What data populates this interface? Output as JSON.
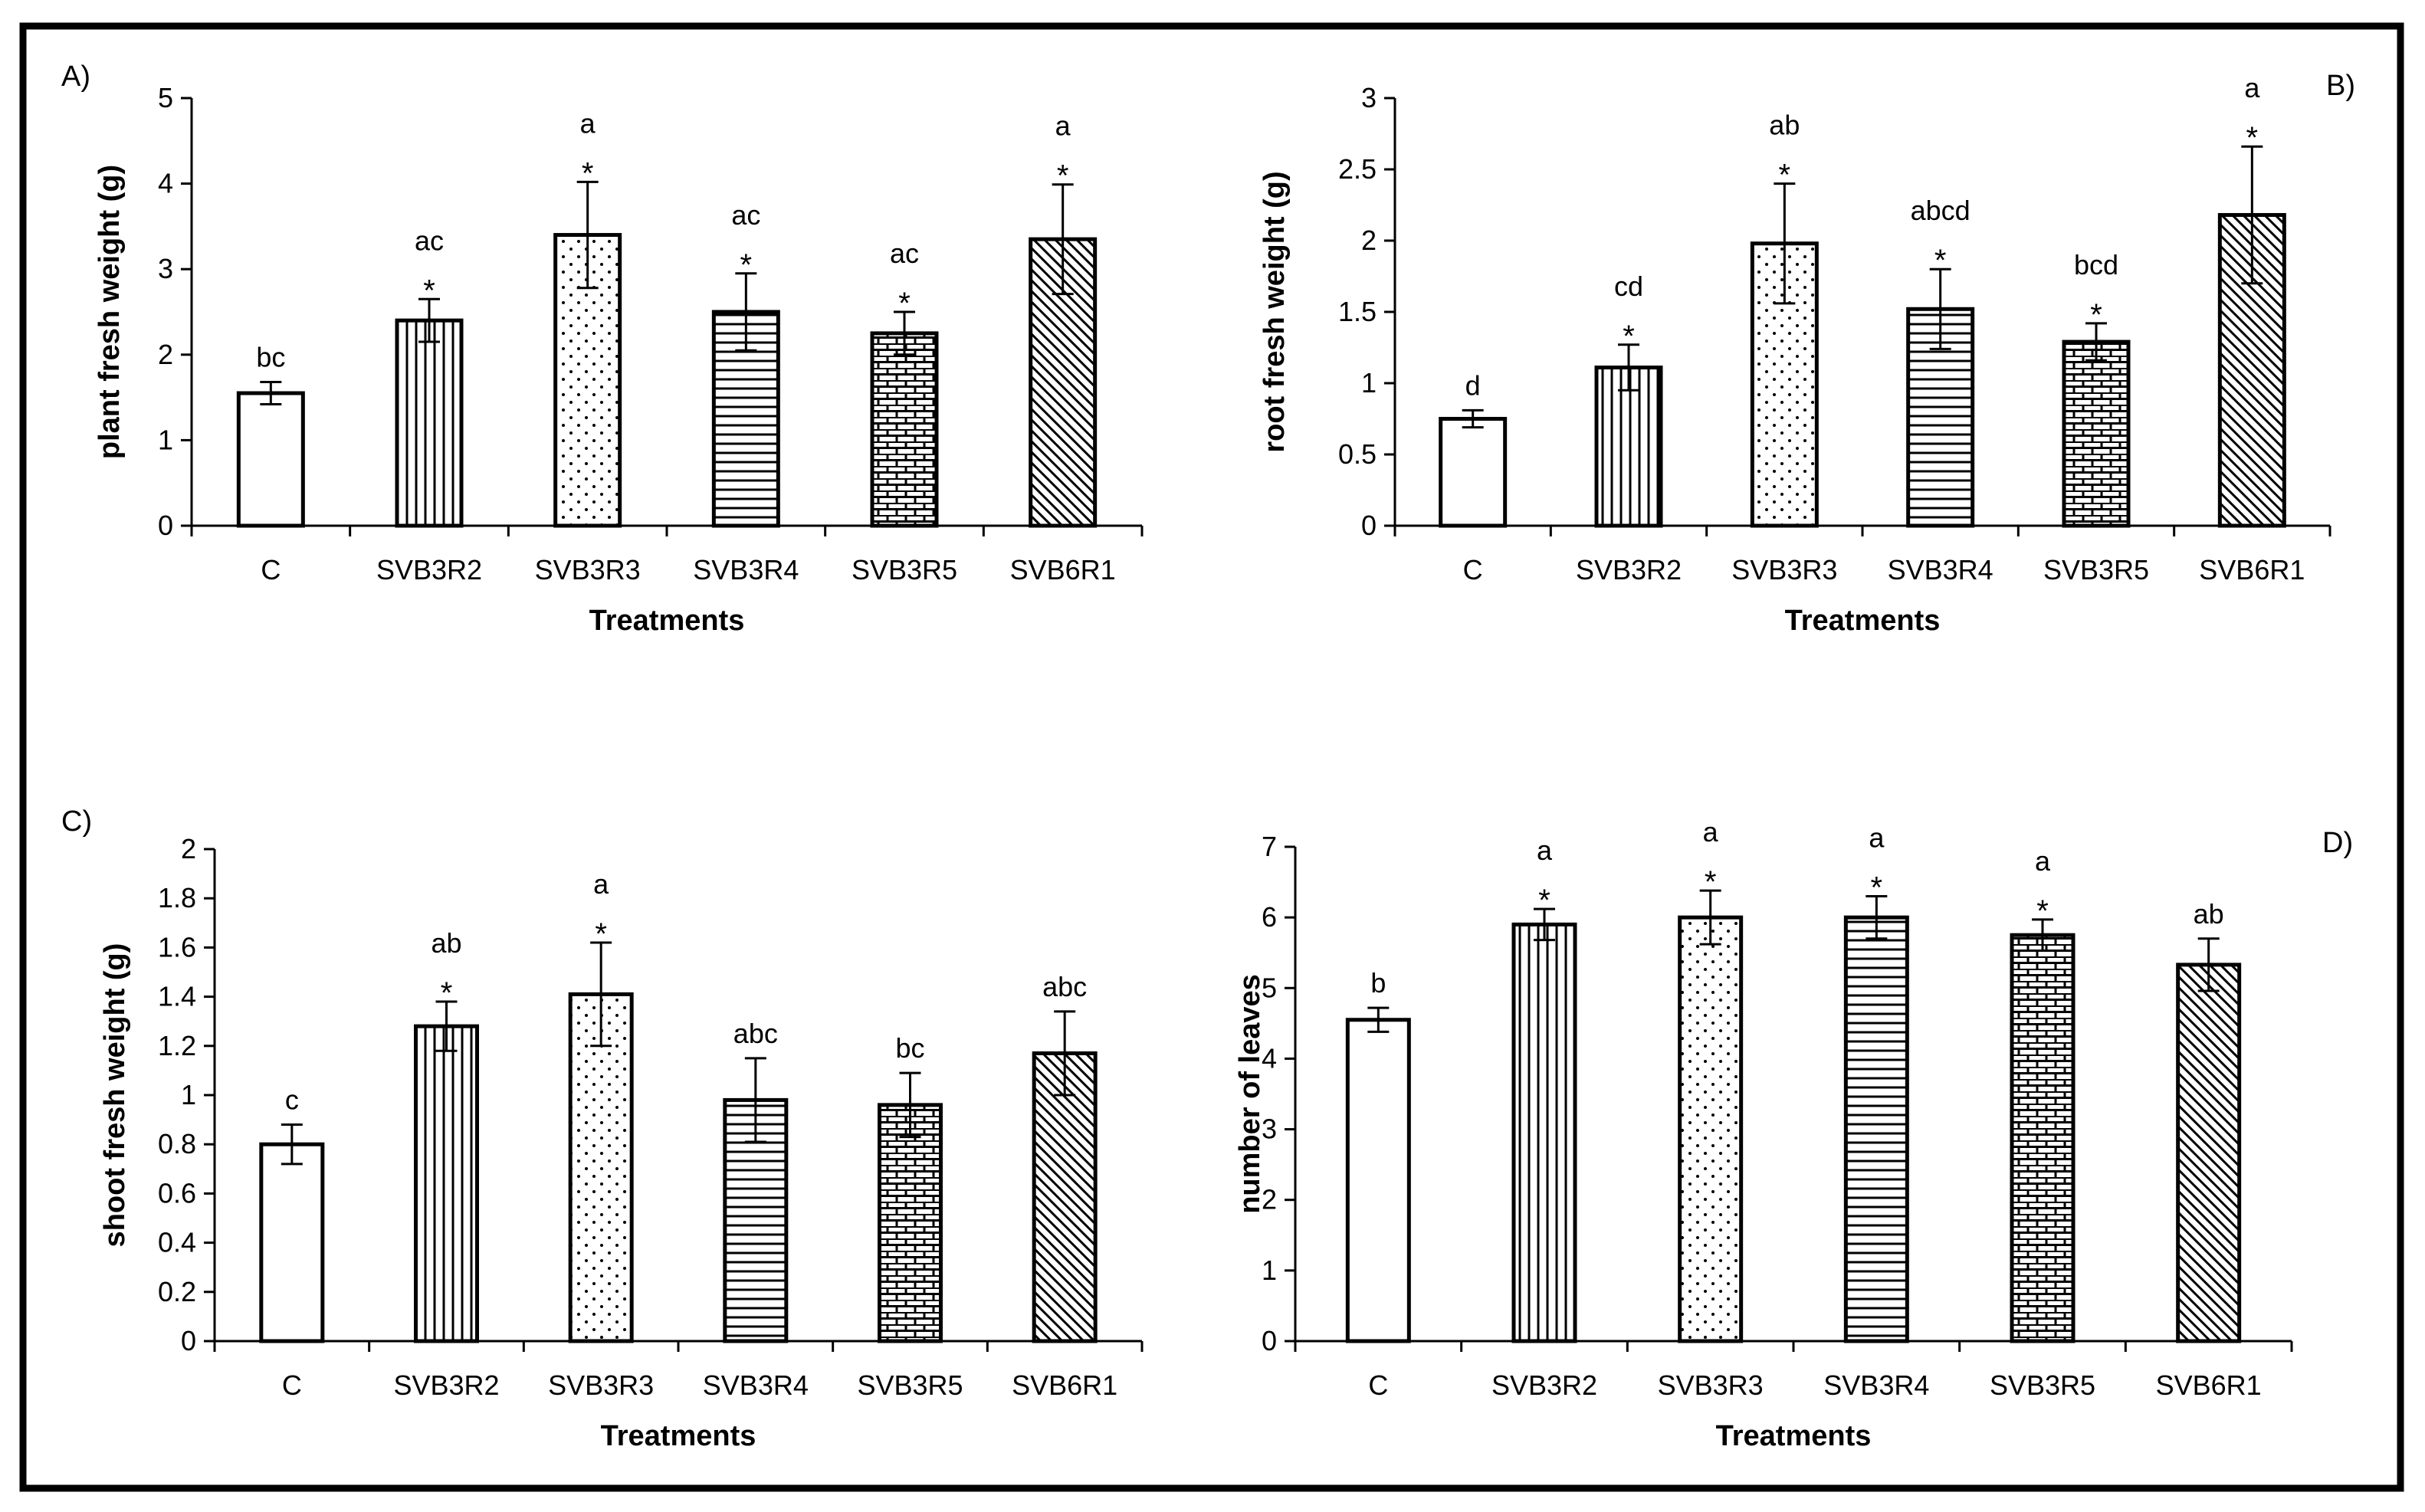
{
  "figure": {
    "panels": [
      {
        "id": "A",
        "label": "A)"
      },
      {
        "id": "B",
        "label": "B)"
      },
      {
        "id": "C",
        "label": "C)"
      },
      {
        "id": "D",
        "label": "D)"
      }
    ]
  },
  "chart_data": [
    {
      "panel": "A)",
      "type": "bar",
      "xlabel": "Treatments",
      "ylabel": "plant fresh weight (g)",
      "ylim": [
        0,
        5
      ],
      "yticks": [
        0,
        1,
        2,
        3,
        4,
        5
      ],
      "ytick_labels": [
        "0",
        "1",
        "2",
        "3",
        "4",
        "5"
      ],
      "categories": [
        "C",
        "SVB3R2",
        "SVB3R3",
        "SVB3R4",
        "SVB3R5",
        "SVB6R1"
      ],
      "values": [
        1.55,
        2.4,
        3.4,
        2.5,
        2.25,
        3.35
      ],
      "errors": [
        0.13,
        0.25,
        0.62,
        0.45,
        0.25,
        0.64
      ],
      "letters": [
        "bc",
        "ac",
        "a",
        "ac",
        "ac",
        "a"
      ],
      "stars": [
        false,
        true,
        true,
        true,
        true,
        true
      ],
      "patterns": [
        "none",
        "vertical",
        "dots",
        "horizontal",
        "brick",
        "diagonal"
      ]
    },
    {
      "panel": "B)",
      "type": "bar",
      "xlabel": "Treatments",
      "ylabel": "root fresh weight (g)",
      "ylim": [
        0,
        3
      ],
      "yticks": [
        0,
        0.5,
        1,
        1.5,
        2,
        2.5,
        3
      ],
      "ytick_labels": [
        "0",
        "0.5",
        "1",
        "1.5",
        "2",
        "2.5",
        "3"
      ],
      "categories": [
        "C",
        "SVB3R2",
        "SVB3R3",
        "SVB3R4",
        "SVB3R5",
        "SVB6R1"
      ],
      "values": [
        0.75,
        1.11,
        1.98,
        1.52,
        1.29,
        2.18
      ],
      "errors": [
        0.06,
        0.16,
        0.42,
        0.28,
        0.13,
        0.48
      ],
      "letters": [
        "d",
        "cd",
        "ab",
        "abcd",
        "bcd",
        "a"
      ],
      "stars": [
        false,
        true,
        true,
        true,
        true,
        true
      ],
      "patterns": [
        "none",
        "vertical",
        "dots",
        "horizontal",
        "brick",
        "diagonal"
      ]
    },
    {
      "panel": "C)",
      "type": "bar",
      "xlabel": "Treatments",
      "ylabel": "shoot fresh weight (g)",
      "ylim": [
        0,
        2
      ],
      "yticks": [
        0,
        0.2,
        0.4,
        0.6,
        0.8,
        1,
        1.2,
        1.4,
        1.6,
        1.8,
        2
      ],
      "ytick_labels": [
        "0",
        "0.2",
        "0.4",
        "0.6",
        "0.8",
        "1",
        "1.2",
        "1.4",
        "1.6",
        "1.8",
        "2"
      ],
      "categories": [
        "C",
        "SVB3R2",
        "SVB3R3",
        "SVB3R4",
        "SVB3R5",
        "SVB6R1"
      ],
      "values": [
        0.8,
        1.28,
        1.41,
        0.98,
        0.96,
        1.17
      ],
      "errors": [
        0.08,
        0.1,
        0.21,
        0.17,
        0.13,
        0.17
      ],
      "letters": [
        "c",
        "ab",
        "a",
        "abc",
        "bc",
        "abc"
      ],
      "stars": [
        false,
        true,
        true,
        false,
        false,
        false
      ],
      "patterns": [
        "none",
        "vertical",
        "dots",
        "horizontal",
        "brick",
        "diagonal"
      ]
    },
    {
      "panel": "D)",
      "type": "bar",
      "xlabel": "Treatments",
      "ylabel": "number of leaves",
      "ylim": [
        0,
        7
      ],
      "yticks": [
        0,
        1,
        2,
        3,
        4,
        5,
        6,
        7
      ],
      "ytick_labels": [
        "0",
        "1",
        "2",
        "3",
        "4",
        "5",
        "6",
        "7"
      ],
      "categories": [
        "C",
        "SVB3R2",
        "SVB3R3",
        "SVB3R4",
        "SVB3R5",
        "SVB6R1"
      ],
      "values": [
        4.55,
        5.9,
        6.0,
        6.0,
        5.75,
        5.33
      ],
      "errors": [
        0.17,
        0.22,
        0.38,
        0.3,
        0.22,
        0.37
      ],
      "letters": [
        "b",
        "a",
        "a",
        "a",
        "a",
        "ab"
      ],
      "stars": [
        false,
        true,
        true,
        true,
        true,
        false
      ],
      "patterns": [
        "none",
        "vertical",
        "dots",
        "horizontal",
        "brick",
        "diagonal"
      ]
    }
  ]
}
